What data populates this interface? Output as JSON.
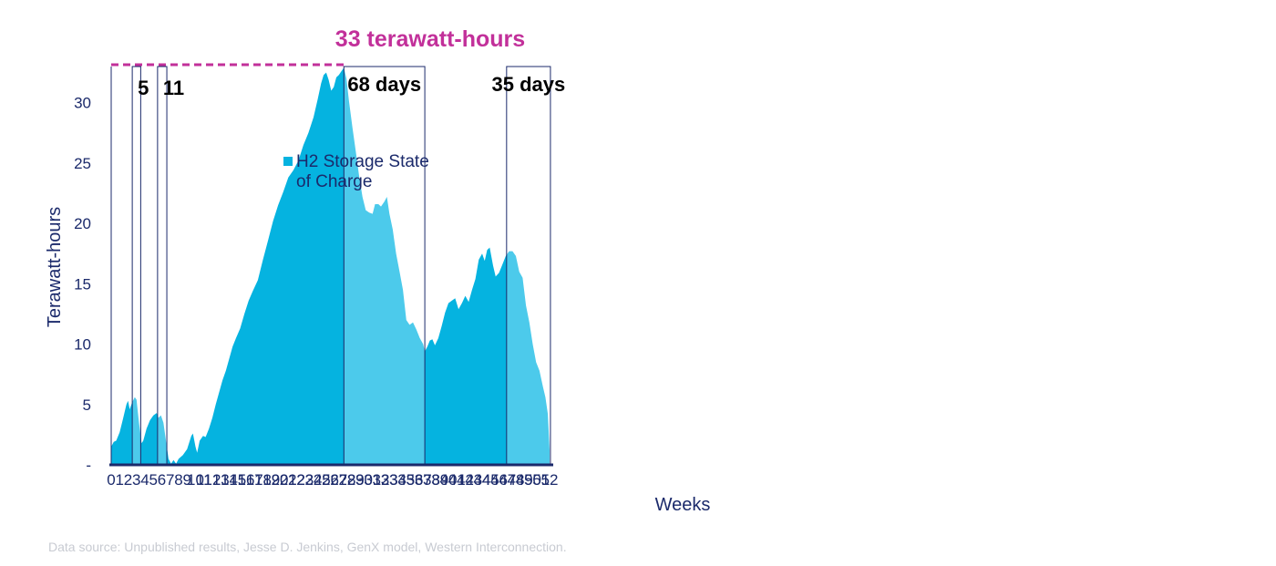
{
  "colors": {
    "fill_dark": "#05b3e0",
    "fill_light": "#4ccaeb",
    "axis": "#1b2a6b",
    "box": "#1b2a6b",
    "peak": "#c2309a",
    "source": "#c8cbd2"
  },
  "chart_data": {
    "type": "area",
    "title": "",
    "xlabel": "Weeks",
    "ylabel": "Terawatt-hours",
    "xlim": [
      0,
      52
    ],
    "ylim": [
      0,
      33
    ],
    "x_ticks": [
      0,
      1,
      2,
      3,
      4,
      5,
      6,
      7,
      8,
      9,
      10,
      11,
      12,
      13,
      14,
      15,
      16,
      17,
      18,
      19,
      20,
      21,
      22,
      23,
      24,
      25,
      26,
      27,
      28,
      29,
      30,
      31,
      32,
      33,
      34,
      35,
      36,
      37,
      38,
      39,
      40,
      41,
      42,
      43,
      44,
      45,
      46,
      47,
      48,
      49,
      50,
      51,
      52
    ],
    "y_ticks": [
      {
        "value": 0,
        "label": "-"
      },
      {
        "value": 5,
        "label": "5"
      },
      {
        "value": 10,
        "label": "10"
      },
      {
        "value": 15,
        "label": "15"
      },
      {
        "value": 20,
        "label": "20"
      },
      {
        "value": 25,
        "label": "25"
      },
      {
        "value": 30,
        "label": "30"
      }
    ],
    "grid": false,
    "legend": {
      "entries": [
        "H2 Storage State of Charge"
      ],
      "lines": [
        "H2 Storage State",
        "of Charge"
      ],
      "placement": "upper-left"
    },
    "series": [
      {
        "name": "H2 Storage State of Charge",
        "points": [
          [
            0,
            1.5
          ],
          [
            0.3,
            1.9
          ],
          [
            0.6,
            2.0
          ],
          [
            1.0,
            2.7
          ],
          [
            1.4,
            3.8
          ],
          [
            1.8,
            5.0
          ],
          [
            2.0,
            5.3
          ],
          [
            2.2,
            4.6
          ],
          [
            2.5,
            5.2
          ],
          [
            2.8,
            5.6
          ],
          [
            3.0,
            5.4
          ],
          [
            3.3,
            3.5
          ],
          [
            3.6,
            1.8
          ],
          [
            3.8,
            2.0
          ],
          [
            4.2,
            3.0
          ],
          [
            4.6,
            3.7
          ],
          [
            5.0,
            4.1
          ],
          [
            5.4,
            4.3
          ],
          [
            5.6,
            3.9
          ],
          [
            5.9,
            4.1
          ],
          [
            6.2,
            3.5
          ],
          [
            6.5,
            2.0
          ],
          [
            6.8,
            0.5
          ],
          [
            7.1,
            0.1
          ],
          [
            7.4,
            0.4
          ],
          [
            7.7,
            0.1
          ],
          [
            8.0,
            0.5
          ],
          [
            8.5,
            0.8
          ],
          [
            9.0,
            1.3
          ],
          [
            9.5,
            2.4
          ],
          [
            9.7,
            2.6
          ],
          [
            10.0,
            1.5
          ],
          [
            10.2,
            1.0
          ],
          [
            10.5,
            2.0
          ],
          [
            10.9,
            2.4
          ],
          [
            11.2,
            2.3
          ],
          [
            11.6,
            3.0
          ],
          [
            12.0,
            3.9
          ],
          [
            12.4,
            5.0
          ],
          [
            12.8,
            6.0
          ],
          [
            13.2,
            7.0
          ],
          [
            13.6,
            7.8
          ],
          [
            14.0,
            8.8
          ],
          [
            14.4,
            9.8
          ],
          [
            14.8,
            10.5
          ],
          [
            15.3,
            11.3
          ],
          [
            15.8,
            12.5
          ],
          [
            16.3,
            13.6
          ],
          [
            16.8,
            14.4
          ],
          [
            17.4,
            15.3
          ],
          [
            18.0,
            17.0
          ],
          [
            18.6,
            18.6
          ],
          [
            19.2,
            20.2
          ],
          [
            19.8,
            21.5
          ],
          [
            20.4,
            22.6
          ],
          [
            21.0,
            23.8
          ],
          [
            21.6,
            24.4
          ],
          [
            22.2,
            25.2
          ],
          [
            22.8,
            26.5
          ],
          [
            23.4,
            27.5
          ],
          [
            24.0,
            28.8
          ],
          [
            24.5,
            30.3
          ],
          [
            24.9,
            31.6
          ],
          [
            25.2,
            32.3
          ],
          [
            25.5,
            32.5
          ],
          [
            25.8,
            31.9
          ],
          [
            26.1,
            31.0
          ],
          [
            26.4,
            31.3
          ],
          [
            26.7,
            32.1
          ],
          [
            27.0,
            32.3
          ],
          [
            27.3,
            32.6
          ],
          [
            27.6,
            32.9
          ],
          [
            27.9,
            32.0
          ],
          [
            28.2,
            30.2
          ],
          [
            28.6,
            28.0
          ],
          [
            29.0,
            26.0
          ],
          [
            29.4,
            24.0
          ],
          [
            29.8,
            22.2
          ],
          [
            30.2,
            21.1
          ],
          [
            30.6,
            20.9
          ],
          [
            31.0,
            20.8
          ],
          [
            31.3,
            21.6
          ],
          [
            31.7,
            21.6
          ],
          [
            32.0,
            21.4
          ],
          [
            32.4,
            21.8
          ],
          [
            32.7,
            22.2
          ],
          [
            33.0,
            20.8
          ],
          [
            33.4,
            19.5
          ],
          [
            33.8,
            17.5
          ],
          [
            34.2,
            16.0
          ],
          [
            34.6,
            14.5
          ],
          [
            35.0,
            12.0
          ],
          [
            35.4,
            11.6
          ],
          [
            35.8,
            11.8
          ],
          [
            36.2,
            11.2
          ],
          [
            36.6,
            10.5
          ],
          [
            37.0,
            10.0
          ],
          [
            37.2,
            9.4
          ],
          [
            37.5,
            9.8
          ],
          [
            37.8,
            10.3
          ],
          [
            38.1,
            10.4
          ],
          [
            38.4,
            9.9
          ],
          [
            38.8,
            10.5
          ],
          [
            39.2,
            11.5
          ],
          [
            39.6,
            12.6
          ],
          [
            40.0,
            13.4
          ],
          [
            40.4,
            13.6
          ],
          [
            40.8,
            13.8
          ],
          [
            41.2,
            12.9
          ],
          [
            41.6,
            13.4
          ],
          [
            42.0,
            14.0
          ],
          [
            42.4,
            13.5
          ],
          [
            42.8,
            14.5
          ],
          [
            43.2,
            15.4
          ],
          [
            43.6,
            17.0
          ],
          [
            44.0,
            17.5
          ],
          [
            44.3,
            16.9
          ],
          [
            44.6,
            17.8
          ],
          [
            44.9,
            18.0
          ],
          [
            45.3,
            16.5
          ],
          [
            45.6,
            15.6
          ],
          [
            46.0,
            15.9
          ],
          [
            46.4,
            16.6
          ],
          [
            46.8,
            17.3
          ],
          [
            47.2,
            17.7
          ],
          [
            47.6,
            17.7
          ],
          [
            48.0,
            17.3
          ],
          [
            48.4,
            16.0
          ],
          [
            48.8,
            15.5
          ],
          [
            49.2,
            13.2
          ],
          [
            49.6,
            11.8
          ],
          [
            50.0,
            10.0
          ],
          [
            50.4,
            8.5
          ],
          [
            50.8,
            7.8
          ],
          [
            51.2,
            6.5
          ],
          [
            51.5,
            5.6
          ],
          [
            51.8,
            4.2
          ],
          [
            52.0,
            1.2
          ]
        ]
      }
    ],
    "periods": [
      {
        "start": 0,
        "end": 2.5,
        "shade": "dark",
        "label": ""
      },
      {
        "start": 2.5,
        "end": 3.5,
        "shade": "light",
        "label": "5"
      },
      {
        "start": 3.5,
        "end": 5.5,
        "shade": "dark",
        "label": ""
      },
      {
        "start": 5.5,
        "end": 6.6,
        "shade": "light",
        "label": "11"
      },
      {
        "start": 6.6,
        "end": 27.6,
        "shade": "dark",
        "label": ""
      },
      {
        "start": 27.6,
        "end": 37.2,
        "shade": "light",
        "label": "68 days"
      },
      {
        "start": 37.2,
        "end": 46.9,
        "shade": "dark",
        "label": ""
      },
      {
        "start": 46.9,
        "end": 52.1,
        "shade": "light",
        "label": "35 days"
      }
    ],
    "annotation": {
      "text": "33 terawatt-hours",
      "value": 33
    }
  },
  "source_note": "Data source: Unpublished results, Jesse D. Jenkins, GenX model, Western Interconnection."
}
